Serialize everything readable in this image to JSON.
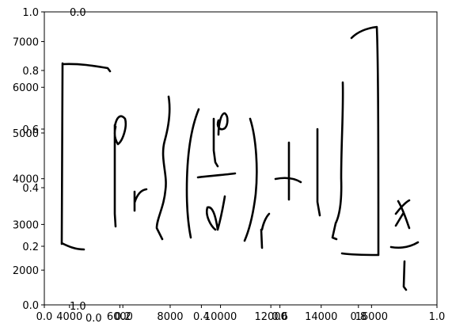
{
  "chart_data": [
    {
      "type": "line",
      "title": "",
      "xlabel": "",
      "ylabel": "",
      "grid": false,
      "xlim": [
        0,
        1
      ],
      "ylim": [
        0,
        1
      ],
      "x_ticks": [
        "0.0",
        "0.2",
        "0.4",
        "0.6",
        "0.8",
        "1.0"
      ],
      "y_ticks": [
        "0.0",
        "0.2",
        "0.4",
        "0.6",
        "0.8",
        "1.0"
      ]
    },
    {
      "type": "line",
      "title": "",
      "xlabel": "",
      "ylabel": "",
      "grid": false,
      "y_ticks": [
        "2000",
        "3000",
        "4000",
        "5000",
        "6000",
        "7000"
      ],
      "x_ticks": [
        "4000",
        "6000",
        "8000",
        "10000",
        "12000",
        "14000",
        "16000"
      ],
      "description_series": "handwritten strokes of a math expression"
    },
    {
      "type": "line",
      "stray_tick_labels": [
        "1.0",
        "0.0",
        "0.0"
      ]
    }
  ],
  "colors": {
    "ink": "#000000",
    "background": "#ffffff"
  }
}
